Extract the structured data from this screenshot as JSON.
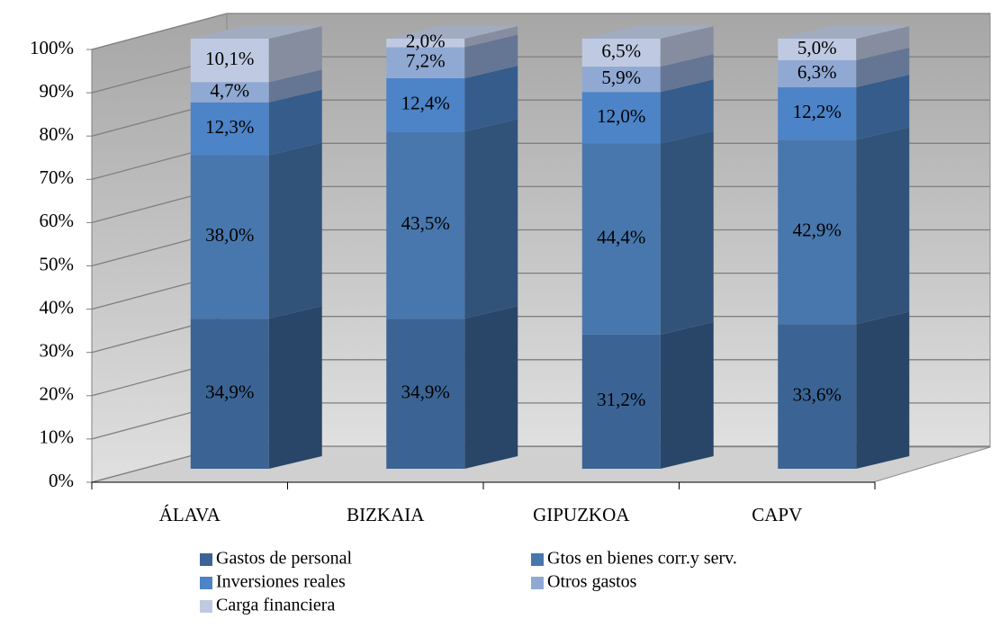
{
  "chart_data": {
    "type": "bar3d_stacked",
    "categories": [
      "ÁLAVA",
      "BIZKAIA",
      "GIPUZKOA",
      "CAPV"
    ],
    "series": [
      {
        "name": "Gastos de personal",
        "color": "#3b6494",
        "values": [
          34.9,
          34.9,
          31.2,
          33.6
        ],
        "value_labels": [
          "34,9%",
          "34,9%",
          "31,2%",
          "33,6%"
        ]
      },
      {
        "name": "Gtos en bienes corr.y serv.",
        "color": "#4877ad",
        "values": [
          38.0,
          43.5,
          44.4,
          42.9
        ],
        "value_labels": [
          "38,0%",
          "43,5%",
          "44,4%",
          "42,9%"
        ]
      },
      {
        "name": "Inversiones reales",
        "color": "#4d83c7",
        "values": [
          12.3,
          12.4,
          12.0,
          12.2
        ],
        "value_labels": [
          "12,3%",
          "12,4%",
          "12,0%",
          "12,2%"
        ]
      },
      {
        "name": "Otros gastos",
        "color": "#90a9d3",
        "values": [
          4.7,
          7.2,
          5.9,
          6.3
        ],
        "value_labels": [
          "4,7%",
          "7,2%",
          "5,9%",
          "6,3%"
        ]
      },
      {
        "name": "Carga financiera",
        "color": "#bfcae2",
        "values": [
          10.1,
          2.0,
          6.5,
          5.0
        ],
        "value_labels": [
          "10,1%",
          "2,0%",
          "6,5%",
          "5,0%"
        ]
      }
    ],
    "ylim": [
      0,
      100
    ],
    "yticks": [
      {
        "value": 0,
        "label": "0%"
      },
      {
        "value": 10,
        "label": "10%"
      },
      {
        "value": 20,
        "label": "20%"
      },
      {
        "value": 30,
        "label": "30%"
      },
      {
        "value": 40,
        "label": "40%"
      },
      {
        "value": 50,
        "label": "50%"
      },
      {
        "value": 60,
        "label": "60%"
      },
      {
        "value": 70,
        "label": "70%"
      },
      {
        "value": 80,
        "label": "80%"
      },
      {
        "value": 90,
        "label": "90%"
      },
      {
        "value": 100,
        "label": "100%"
      }
    ],
    "grid": true,
    "legend": "bottom"
  }
}
